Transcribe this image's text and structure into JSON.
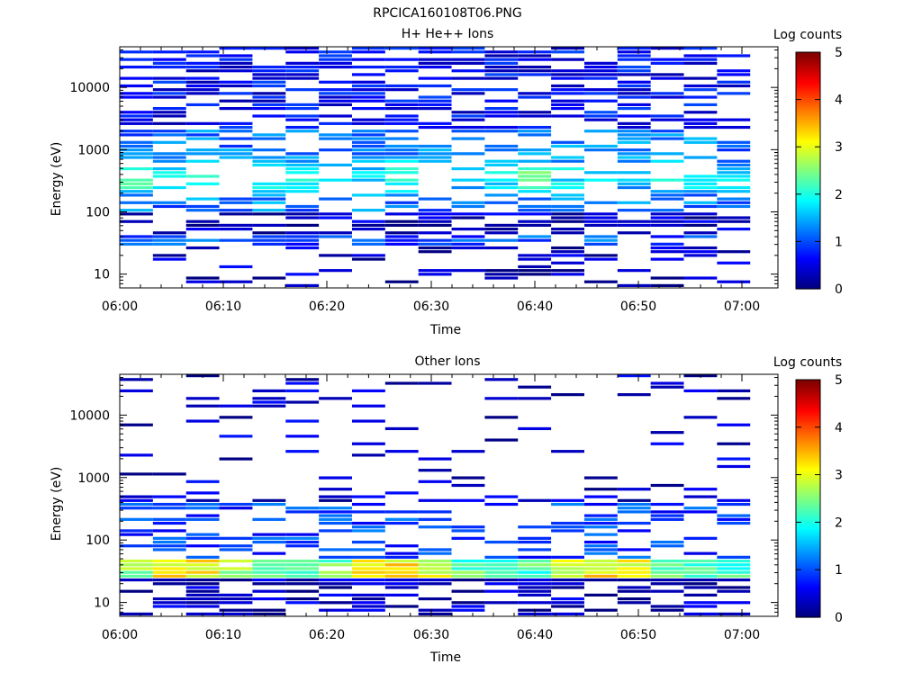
{
  "figure_title": "RPCICA160108T06.PNG",
  "chart_data": [
    {
      "type": "heatmap",
      "title": "H+ He++ Ions",
      "xlabel": "Time",
      "ylabel": "Energy (eV)",
      "x_ticks": [
        "06:00",
        "06:10",
        "06:20",
        "06:30",
        "06:40",
        "06:50",
        "07:00"
      ],
      "y_scale": "log",
      "y_ticks": [
        "10",
        "100",
        "1000",
        "10000"
      ],
      "ylim": [
        6,
        45000
      ],
      "colorbar": {
        "label": "Log counts",
        "range": [
          0,
          5
        ],
        "ticks": [
          "0",
          "1",
          "2",
          "3",
          "4",
          "5"
        ]
      },
      "grid": false
    },
    {
      "type": "heatmap",
      "title": "Other Ions",
      "xlabel": "Time",
      "ylabel": "Energy (eV)",
      "x_ticks": [
        "06:00",
        "06:10",
        "06:20",
        "06:30",
        "06:40",
        "06:50",
        "07:00"
      ],
      "y_scale": "log",
      "y_ticks": [
        "10",
        "100",
        "1000",
        "10000"
      ],
      "ylim": [
        6,
        45000
      ],
      "colorbar": {
        "label": "Log counts",
        "range": [
          0,
          5
        ],
        "ticks": [
          "0",
          "1",
          "2",
          "3",
          "4",
          "5"
        ]
      },
      "grid": false
    }
  ]
}
